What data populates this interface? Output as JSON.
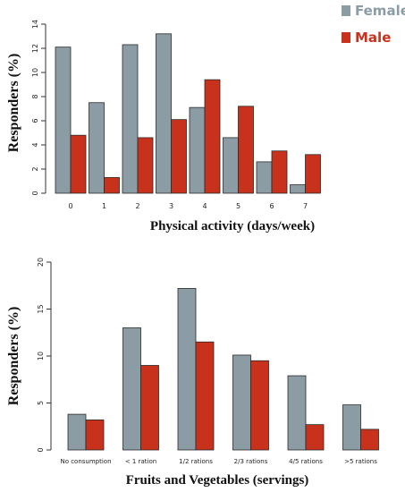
{
  "legend": [
    {
      "label": "Female",
      "color": "#8c9ca4"
    },
    {
      "label": "Male",
      "color": "#c8321c"
    }
  ],
  "chart_data": [
    {
      "type": "bar",
      "xlabel": "Physical activity (days/week)",
      "ylabel": "Responders (%)",
      "categories": [
        "0",
        "1",
        "2",
        "3",
        "4",
        "5",
        "6",
        "7"
      ],
      "ylim": [
        0,
        14
      ],
      "yticks": [
        "0",
        "2",
        "4",
        "6",
        "8",
        "10",
        "12",
        "14"
      ],
      "series": [
        {
          "name": "Female",
          "color": "#8c9ca4",
          "values": [
            12.1,
            7.5,
            12.3,
            13.2,
            7.1,
            4.6,
            2.6,
            0.7
          ]
        },
        {
          "name": "Male",
          "color": "#c8321c",
          "values": [
            4.8,
            1.3,
            4.6,
            6.1,
            9.4,
            7.2,
            3.5,
            3.2
          ]
        }
      ]
    },
    {
      "type": "bar",
      "xlabel": "Fruits and Vegetables (servings)",
      "ylabel": "Responders (%)",
      "categories": [
        "No consumption",
        "< 1 ration",
        "1/2 rations",
        "2/3  rations",
        "4/5  rations",
        ">5  rations"
      ],
      "ylim": [
        0,
        20
      ],
      "yticks": [
        "0",
        "5",
        "10",
        "15",
        "20"
      ],
      "series": [
        {
          "name": "Female",
          "color": "#8c9ca4",
          "values": [
            3.8,
            13.0,
            17.2,
            10.1,
            7.9,
            4.8
          ]
        },
        {
          "name": "Male",
          "color": "#c8321c",
          "values": [
            3.2,
            9.0,
            11.5,
            9.5,
            2.7,
            2.2
          ]
        }
      ]
    }
  ]
}
